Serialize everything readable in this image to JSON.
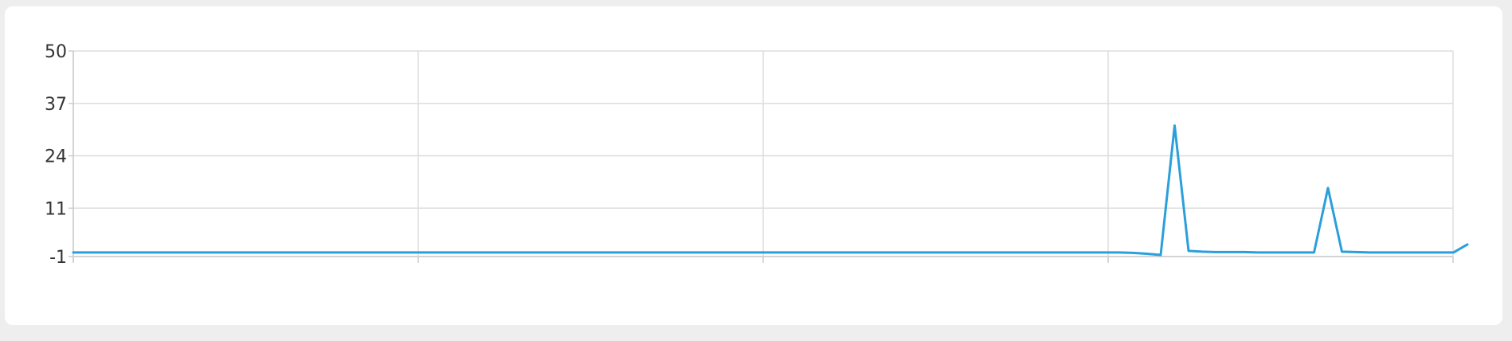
{
  "chart_data": {
    "type": "line",
    "title": "",
    "xlabel": "",
    "ylabel": "",
    "ylim": [
      -1,
      50
    ],
    "yticks": [
      50,
      37,
      24,
      11,
      -1
    ],
    "x_grid_divisions": 4,
    "grid": true,
    "colors": {
      "line": "#2a9fdb",
      "grid": "#dddddd",
      "axis": "#cccccc"
    },
    "series": [
      {
        "values": [
          0,
          0,
          0,
          0,
          0,
          0,
          0,
          0,
          0,
          0,
          0,
          0,
          0,
          0,
          0,
          0,
          0,
          0,
          0,
          0,
          0,
          0,
          0,
          0,
          0,
          0,
          0,
          0,
          0,
          0,
          0,
          0,
          0,
          0,
          0,
          0,
          0,
          0,
          0,
          0,
          0,
          0,
          0,
          0,
          0,
          0,
          0,
          0,
          0,
          0,
          0,
          0,
          0,
          0,
          0,
          0,
          0,
          0,
          0,
          0,
          0,
          0,
          0,
          0,
          0,
          0,
          0,
          0,
          0,
          0,
          0,
          0,
          0,
          0,
          0,
          0,
          -0.1,
          -0.3,
          -0.6,
          31.5,
          0.4,
          0.2,
          0.1,
          0.1,
          0.1,
          0,
          0,
          0,
          0,
          0,
          16,
          0.2,
          0.1,
          0,
          0,
          0,
          0,
          0,
          0,
          0,
          2
        ]
      }
    ]
  }
}
